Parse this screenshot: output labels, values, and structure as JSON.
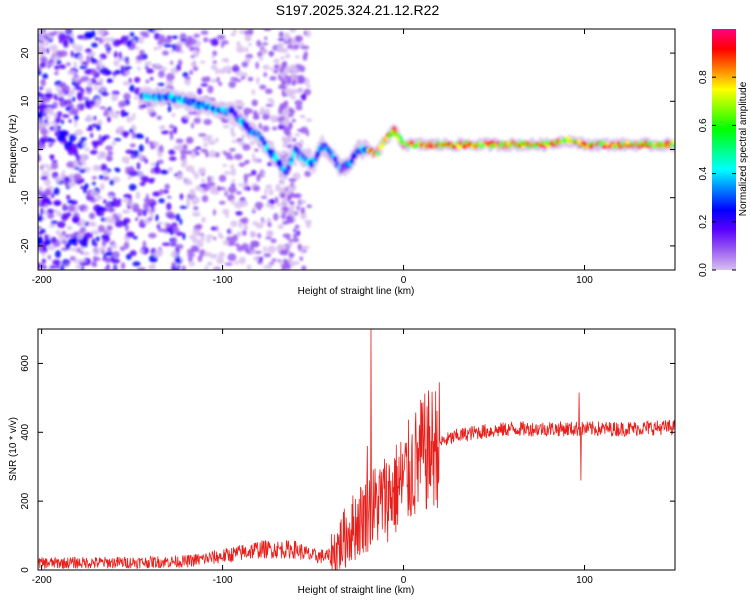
{
  "title": "S197.2025.324.21.12.R22",
  "chart_data": [
    {
      "type": "heatmap",
      "name": "spectrogram",
      "xlabel": "Height of straight line (km)",
      "ylabel": "Frequency (Hz)",
      "xlim": [
        -202,
        150
      ],
      "ylim": [
        -25,
        25
      ],
      "xticks": [
        -200,
        -100,
        0,
        100
      ],
      "yticks": [
        -20,
        -10,
        0,
        10,
        20
      ],
      "colorbar": {
        "label": "Normalized spectral amplitude",
        "range": [
          0,
          1
        ],
        "ticks": [
          0.0,
          0.2,
          0.4,
          0.6,
          0.8
        ],
        "colors": [
          "#ffffff",
          "#d8c0f0",
          "#9a5cf0",
          "#5a00ff",
          "#0000ff",
          "#0080ff",
          "#00ffff",
          "#00ff80",
          "#00ff00",
          "#80ff00",
          "#ffff00",
          "#ff8000",
          "#ff0000",
          "#ff0080"
        ]
      },
      "ridge": {
        "x": [
          -140,
          -130,
          -120,
          -110,
          -100,
          -95,
          -90,
          -85,
          -80,
          -75,
          -70,
          -65,
          -60,
          -55,
          -50,
          -45,
          -40,
          -35,
          -30,
          -25,
          -20,
          -15,
          -10,
          -5,
          0,
          10,
          20,
          40,
          60,
          80,
          90,
          100,
          120,
          150
        ],
        "freq": [
          11,
          11,
          10,
          9,
          8,
          8,
          6,
          4,
          3,
          0,
          -2,
          -5,
          0,
          -2,
          -3,
          1,
          -1,
          -4,
          -3,
          0,
          0,
          -1,
          2,
          4,
          1,
          1,
          1,
          1,
          1,
          1,
          2,
          1,
          1,
          1
        ]
      }
    },
    {
      "type": "line",
      "name": "snr",
      "xlabel": "Height of straight line (km)",
      "ylabel": "SNR (10 * v/v)",
      "xlim": [
        -202,
        150
      ],
      "ylim": [
        0,
        700
      ],
      "xticks": [
        -200,
        -100,
        0,
        100
      ],
      "yticks": [
        0,
        200,
        400,
        600
      ],
      "color": "#e8201c",
      "trend": {
        "x": [
          -202,
          -150,
          -120,
          -100,
          -80,
          -60,
          -50,
          -40,
          -30,
          -20,
          -15,
          -10,
          -5,
          0,
          10,
          20,
          30,
          40,
          60,
          80,
          100,
          120,
          150
        ],
        "y": [
          20,
          22,
          25,
          40,
          60,
          60,
          40,
          40,
          110,
          170,
          190,
          210,
          230,
          260,
          330,
          370,
          390,
          400,
          410,
          410,
          410,
          410,
          415
        ]
      },
      "spikes": [
        {
          "x": -18,
          "y": 700
        },
        {
          "x": -20,
          "y": 360
        },
        {
          "x": 10,
          "y": 485
        },
        {
          "x": 97,
          "y": 515
        },
        {
          "x": 98,
          "y": 260
        }
      ]
    }
  ]
}
